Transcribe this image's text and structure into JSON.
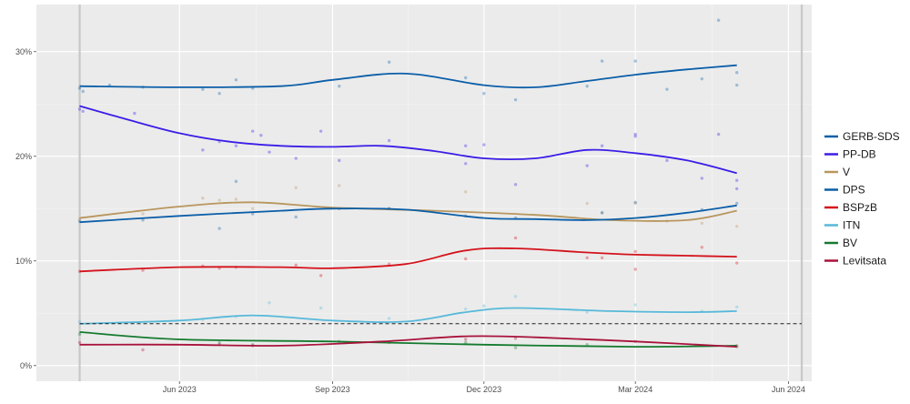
{
  "chart_data": {
    "type": "line",
    "title": "",
    "xlabel": "",
    "ylabel": "",
    "y_ticks": [
      {
        "value": 0,
        "label": "0%"
      },
      {
        "value": 10,
        "label": "10%"
      },
      {
        "value": 20,
        "label": "20%"
      },
      {
        "value": 30,
        "label": "30%"
      }
    ],
    "x_ticks": [
      {
        "date": "2023-06-01",
        "label": "Jun 2023"
      },
      {
        "date": "2023-09-01",
        "label": "Sep 2023"
      },
      {
        "date": "2023-12-01",
        "label": "Dec 2023"
      },
      {
        "date": "2024-03-01",
        "label": "Mar 2024"
      },
      {
        "date": "2024-06-01",
        "label": "Jun 2024"
      }
    ],
    "xlim": [
      "2023-03-07",
      "2024-06-15"
    ],
    "ylim": [
      -1.5,
      34.5
    ],
    "election_dates": [
      "2023-04-02",
      "2024-06-09"
    ],
    "threshold": 4,
    "legend_position": "right",
    "series": [
      {
        "name": "GERB-SDS",
        "color": "#0b5ea8",
        "x": [
          "2023-04-02",
          "2023-06-01",
          "2023-08-01",
          "2023-09-01",
          "2023-10-15",
          "2023-12-01",
          "2024-01-01",
          "2024-02-01",
          "2024-03-01",
          "2024-04-01",
          "2024-05-01"
        ],
        "y": [
          26.7,
          26.6,
          26.7,
          27.3,
          27.9,
          26.8,
          26.6,
          27.2,
          27.8,
          28.3,
          28.7
        ],
        "points": [
          [
            "2023-04-02",
            26.5
          ],
          [
            "2023-04-04",
            26.2
          ],
          [
            "2023-04-20",
            26.8
          ],
          [
            "2023-05-10",
            26.6
          ],
          [
            "2023-06-15",
            26.4
          ],
          [
            "2023-06-25",
            26.0
          ],
          [
            "2023-07-05",
            27.3
          ],
          [
            "2023-07-15",
            26.5
          ],
          [
            "2023-09-05",
            26.7
          ],
          [
            "2023-10-05",
            29.0
          ],
          [
            "2023-11-20",
            27.5
          ],
          [
            "2023-12-01",
            26.0
          ],
          [
            "2023-12-20",
            25.4
          ],
          [
            "2024-02-01",
            26.7
          ],
          [
            "2024-02-10",
            29.1
          ],
          [
            "2024-03-01",
            29.1
          ],
          [
            "2024-03-20",
            26.4
          ],
          [
            "2024-04-10",
            27.4
          ],
          [
            "2024-04-20",
            33.0
          ],
          [
            "2024-05-01",
            28.0
          ],
          [
            "2024-05-01",
            26.8
          ]
        ]
      },
      {
        "name": "PP-DB",
        "color": "#3a1de6",
        "x": [
          "2023-04-02",
          "2023-05-01",
          "2023-06-01",
          "2023-07-01",
          "2023-08-01",
          "2023-09-01",
          "2023-10-01",
          "2023-11-01",
          "2023-12-01",
          "2024-01-01",
          "2024-02-01",
          "2024-03-01",
          "2024-04-01",
          "2024-05-01"
        ],
        "y": [
          24.8,
          23.5,
          22.2,
          21.4,
          21.0,
          20.9,
          21.0,
          20.5,
          19.8,
          19.8,
          20.6,
          20.3,
          19.6,
          18.4
        ],
        "points": [
          [
            "2023-04-02",
            24.5
          ],
          [
            "2023-04-04",
            24.3
          ],
          [
            "2023-05-05",
            24.1
          ],
          [
            "2023-06-15",
            20.6
          ],
          [
            "2023-06-25",
            21.4
          ],
          [
            "2023-07-05",
            21.0
          ],
          [
            "2023-07-15",
            22.4
          ],
          [
            "2023-07-20",
            22.0
          ],
          [
            "2023-07-25",
            20.4
          ],
          [
            "2023-08-10",
            19.8
          ],
          [
            "2023-08-25",
            22.4
          ],
          [
            "2023-09-05",
            19.6
          ],
          [
            "2023-10-05",
            21.5
          ],
          [
            "2023-11-20",
            21.0
          ],
          [
            "2023-11-20",
            19.3
          ],
          [
            "2023-12-01",
            21.1
          ],
          [
            "2023-12-20",
            17.3
          ],
          [
            "2024-02-01",
            19.1
          ],
          [
            "2024-02-10",
            21.0
          ],
          [
            "2024-03-01",
            22.1
          ],
          [
            "2024-03-01",
            21.9
          ],
          [
            "2024-03-20",
            19.6
          ],
          [
            "2024-04-10",
            17.9
          ],
          [
            "2024-04-20",
            22.1
          ],
          [
            "2024-05-01",
            17.7
          ],
          [
            "2024-05-01",
            16.9
          ]
        ]
      },
      {
        "name": "V",
        "color": "#b8965e",
        "x": [
          "2023-04-02",
          "2023-06-01",
          "2023-07-15",
          "2023-09-01",
          "2023-11-01",
          "2024-01-01",
          "2024-02-15",
          "2024-04-01",
          "2024-05-01"
        ],
        "y": [
          14.1,
          15.2,
          15.6,
          15.1,
          14.8,
          14.4,
          13.9,
          13.9,
          14.8
        ],
        "points": [
          [
            "2023-04-02",
            14.0
          ],
          [
            "2023-05-10",
            14.5
          ],
          [
            "2023-06-15",
            16.0
          ],
          [
            "2023-06-25",
            15.8
          ],
          [
            "2023-07-05",
            15.9
          ],
          [
            "2023-07-15",
            15.0
          ],
          [
            "2023-08-10",
            17.0
          ],
          [
            "2023-09-05",
            17.2
          ],
          [
            "2023-10-05",
            15.0
          ],
          [
            "2023-11-20",
            16.6
          ],
          [
            "2024-02-01",
            15.5
          ],
          [
            "2024-02-10",
            14.6
          ],
          [
            "2024-03-01",
            15.5
          ],
          [
            "2024-03-20",
            13.8
          ],
          [
            "2024-04-10",
            13.6
          ],
          [
            "2024-05-01",
            13.3
          ]
        ]
      },
      {
        "name": "DPS",
        "color": "#0b5ea8",
        "x": [
          "2023-04-02",
          "2023-06-01",
          "2023-08-01",
          "2023-09-01",
          "2023-10-15",
          "2023-12-01",
          "2024-01-01",
          "2024-02-01",
          "2024-03-01",
          "2024-04-01",
          "2024-05-01"
        ],
        "y": [
          13.7,
          14.3,
          14.8,
          15.0,
          14.9,
          14.1,
          14.0,
          13.9,
          14.1,
          14.6,
          15.3
        ],
        "points": [
          [
            "2023-04-02",
            13.8
          ],
          [
            "2023-05-10",
            13.9
          ],
          [
            "2023-06-25",
            13.1
          ],
          [
            "2023-07-05",
            17.6
          ],
          [
            "2023-07-15",
            14.5
          ],
          [
            "2023-08-10",
            14.2
          ],
          [
            "2023-09-05",
            15.0
          ],
          [
            "2023-10-05",
            15.0
          ],
          [
            "2023-11-20",
            14.3
          ],
          [
            "2023-12-20",
            14.1
          ],
          [
            "2024-02-10",
            14.6
          ],
          [
            "2024-03-01",
            15.6
          ],
          [
            "2024-04-10",
            14.9
          ],
          [
            "2024-05-01",
            15.5
          ]
        ]
      },
      {
        "name": "BSPzB",
        "color": "#d4121b",
        "x": [
          "2023-04-02",
          "2023-06-01",
          "2023-08-01",
          "2023-09-01",
          "2023-10-15",
          "2023-11-20",
          "2023-12-20",
          "2024-02-01",
          "2024-03-01",
          "2024-04-01",
          "2024-05-01"
        ],
        "y": [
          9.0,
          9.4,
          9.4,
          9.3,
          9.7,
          11.0,
          11.2,
          10.8,
          10.6,
          10.5,
          10.4
        ],
        "points": [
          [
            "2023-04-02",
            9.0
          ],
          [
            "2023-05-10",
            9.1
          ],
          [
            "2023-06-15",
            9.5
          ],
          [
            "2023-06-25",
            9.3
          ],
          [
            "2023-07-05",
            9.4
          ],
          [
            "2023-08-10",
            9.6
          ],
          [
            "2023-08-25",
            8.6
          ],
          [
            "2023-10-05",
            9.7
          ],
          [
            "2023-11-20",
            10.2
          ],
          [
            "2023-12-20",
            12.2
          ],
          [
            "2024-02-01",
            10.3
          ],
          [
            "2024-02-10",
            10.3
          ],
          [
            "2024-03-01",
            10.9
          ],
          [
            "2024-03-01",
            9.2
          ],
          [
            "2024-04-10",
            11.3
          ],
          [
            "2024-05-01",
            9.8
          ]
        ]
      },
      {
        "name": "ITN",
        "color": "#57b9da",
        "x": [
          "2023-04-02",
          "2023-06-01",
          "2023-07-15",
          "2023-09-01",
          "2023-10-15",
          "2023-11-20",
          "2023-12-20",
          "2024-02-15",
          "2024-04-01",
          "2024-05-01"
        ],
        "y": [
          4.0,
          4.3,
          4.8,
          4.3,
          4.2,
          5.1,
          5.5,
          5.2,
          5.1,
          5.2
        ],
        "points": [
          [
            "2023-04-02",
            4.2
          ],
          [
            "2023-06-15",
            4.4
          ],
          [
            "2023-07-05",
            4.7
          ],
          [
            "2023-07-25",
            6.0
          ],
          [
            "2023-08-25",
            5.5
          ],
          [
            "2023-10-05",
            4.5
          ],
          [
            "2023-11-20",
            5.4
          ],
          [
            "2023-12-01",
            5.7
          ],
          [
            "2023-12-20",
            6.6
          ],
          [
            "2024-02-01",
            5.1
          ],
          [
            "2024-03-01",
            5.8
          ],
          [
            "2024-04-10",
            5.2
          ],
          [
            "2024-05-01",
            5.6
          ]
        ]
      },
      {
        "name": "BV",
        "color": "#137a2e",
        "x": [
          "2023-04-02",
          "2023-06-01",
          "2023-09-01",
          "2023-12-01",
          "2024-03-01",
          "2024-05-01"
        ],
        "y": [
          3.2,
          2.5,
          2.3,
          2.0,
          1.8,
          1.9
        ],
        "points": [
          [
            "2023-04-02",
            3.0
          ],
          [
            "2023-06-25",
            2.2
          ],
          [
            "2023-07-15",
            2.0
          ],
          [
            "2023-09-05",
            2.3
          ],
          [
            "2023-11-20",
            2.2
          ],
          [
            "2023-12-20",
            1.7
          ],
          [
            "2024-02-01",
            2.0
          ],
          [
            "2024-05-01",
            1.8
          ]
        ]
      },
      {
        "name": "Levitsata",
        "color": "#a8133c",
        "x": [
          "2023-04-02",
          "2023-06-01",
          "2023-08-01",
          "2023-10-01",
          "2023-11-20",
          "2024-01-01",
          "2024-03-01",
          "2024-05-01"
        ],
        "y": [
          2.0,
          2.0,
          1.9,
          2.3,
          2.8,
          2.7,
          2.3,
          1.8
        ],
        "points": [
          [
            "2023-04-02",
            2.2
          ],
          [
            "2023-05-10",
            1.5
          ],
          [
            "2023-06-25",
            2.0
          ],
          [
            "2023-07-15",
            1.9
          ],
          [
            "2023-10-05",
            2.2
          ],
          [
            "2023-11-20",
            2.5
          ],
          [
            "2023-12-20",
            2.6
          ],
          [
            "2024-03-01",
            2.3
          ],
          [
            "2024-05-01",
            1.9
          ]
        ]
      }
    ]
  }
}
